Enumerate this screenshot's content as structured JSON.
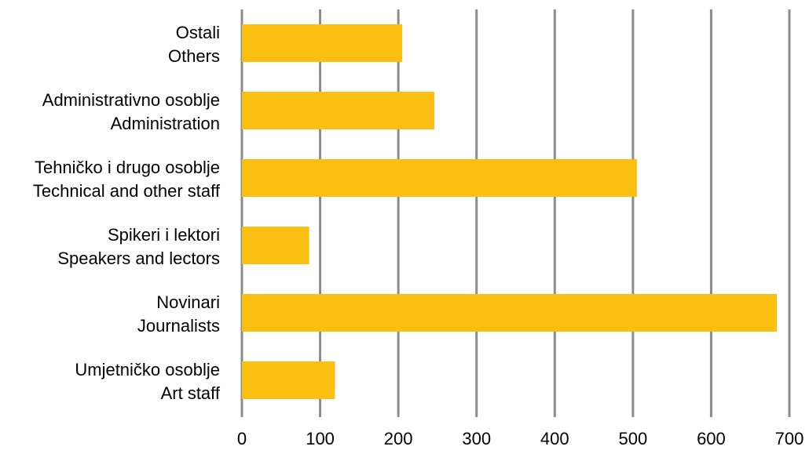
{
  "chart_data": {
    "type": "bar",
    "orientation": "horizontal",
    "categories": [
      {
        "line1": "Ostali",
        "line2": "Others"
      },
      {
        "line1": "Administrativno osoblje",
        "line2": "Administration"
      },
      {
        "line1": "Tehničko i drugo osoblje",
        "line2": "Technical and other staff"
      },
      {
        "line1": "Spikeri i lektori",
        "line2": "Speakers and lectors"
      },
      {
        "line1": "Novinari",
        "line2": "Journalists"
      },
      {
        "line1": "Umjetničko osoblje",
        "line2": "Art staff"
      }
    ],
    "values": [
      205,
      246,
      505,
      86,
      684,
      119
    ],
    "xlim": [
      0,
      700
    ],
    "x_ticks": [
      "0",
      "100",
      "200",
      "300",
      "400",
      "500",
      "600",
      "700"
    ],
    "grid": true,
    "legend": false,
    "bar_color": "#FBBF11",
    "grid_color": "#8C8C8C"
  }
}
